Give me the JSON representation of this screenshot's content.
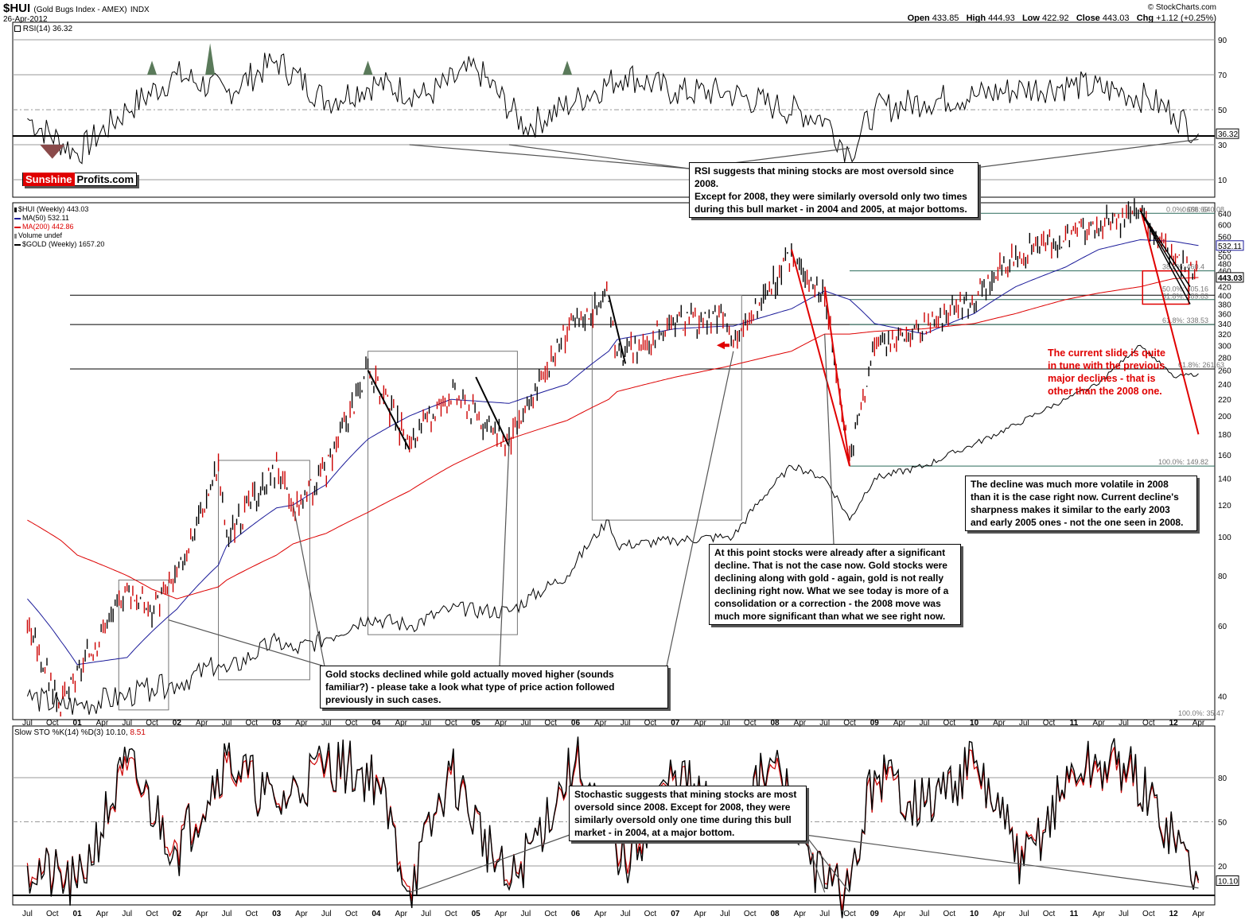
{
  "header": {
    "symbol": "$HUI",
    "name": "(Gold Bugs Index - AMEX)",
    "exchange": "INDX",
    "date": "26-Apr-2012",
    "copyright": "© StockCharts.com",
    "open_label": "Open",
    "open": "433.85",
    "high_label": "High",
    "high": "444.93",
    "low_label": "Low",
    "low": "422.92",
    "close_label": "Close",
    "close": "443.03",
    "chg_label": "Chg",
    "chg": "+1.12 (+0.25%)"
  },
  "logo": {
    "part1": "Sunshine",
    "part2": "Profits.com"
  },
  "colors": {
    "price_up": "#000000",
    "price_down": "#cc0000",
    "ma50": "#1a1a99",
    "ma200": "#dd0000",
    "gold": "#000000",
    "rsi_fill_high": "#5a7a5a",
    "rsi_fill_low": "#8a4a4a",
    "annotation": "#e00000",
    "fib": "#2a6a5a"
  },
  "rsi_panel": {
    "label": "RSI(14) 36.32",
    "current": "36.32",
    "ticks": [
      "90",
      "70",
      "50",
      "30",
      "10"
    ]
  },
  "price_panel": {
    "legend": [
      {
        "text": "$HUI (Weekly) 443.03",
        "icon": "candle-icon"
      },
      {
        "text": "MA(50) 532.11",
        "icon": "blue-line-icon"
      },
      {
        "text": "MA(200) 442.86",
        "icon": "red-line-icon"
      },
      {
        "text": "Volume undef",
        "icon": "volume-icon"
      },
      {
        "text": "$GOLD (Weekly) 1657.20",
        "icon": "black-line-icon"
      }
    ],
    "right_ticks": [
      "640",
      "600",
      "560",
      "520",
      "500",
      "480",
      "460",
      "440",
      "420",
      "400",
      "380",
      "360",
      "340",
      "320",
      "300",
      "280",
      "260",
      "240",
      "220",
      "200",
      "180",
      "160",
      "140",
      "120",
      "100",
      "80",
      "60",
      "40"
    ],
    "badges": {
      "ma50": "532.11",
      "price": "443.03"
    },
    "fib_labels": [
      "0.0%: 668.69",
      "0.0%: 640.08",
      "38.2%: 460.4",
      "50.0%: 405.16",
      "61.8%: 389.83",
      "61.8%: 338.53",
      "100.0%: 149.82",
      "61.8%: 261.63",
      "100.0%: 35.47"
    ],
    "arrow_icon": "red-arrow-icon"
  },
  "sto_panel": {
    "label_prefix": "Slow STO %K(14) %D(3) 10.10,",
    "label_d": "8.51",
    "current": "10.10",
    "ticks": [
      "80",
      "50",
      "20"
    ]
  },
  "x_axis": {
    "labels": [
      "Jul",
      "Oct",
      "01",
      "Apr",
      "Jul",
      "Oct",
      "02",
      "Apr",
      "Jul",
      "Oct",
      "03",
      "Apr",
      "Jul",
      "Oct",
      "04",
      "Apr",
      "Jul",
      "Oct",
      "05",
      "Apr",
      "Jul",
      "Oct",
      "06",
      "Apr",
      "Jul",
      "Oct",
      "07",
      "Apr",
      "Jul",
      "Oct",
      "08",
      "Apr",
      "Jul",
      "Oct",
      "09",
      "Apr",
      "Jul",
      "Oct",
      "10",
      "Apr",
      "Jul",
      "Oct",
      "11",
      "Apr",
      "Jul",
      "Oct",
      "12",
      "Apr"
    ]
  },
  "annotations": {
    "rsi_note": "RSI suggests that mining stocks are most oversold since 2008.\nExcept for 2008, they were similarly oversold only two times\nduring this bull market - in 2004 and 2005, at major bottoms.",
    "current_slide": "The current slide is quite\nin tune with the previous\nmajor declines - that is\nother than the 2008 one.",
    "decline_2008": "The decline was much more volatile in 2008\nthan it is the case right now. Current decline's\nsharpness makes it similar to the early 2003\nand early 2005 ones - not the one seen in 2008.",
    "stocks_after": "At this point stocks were already after a significant\ndecline. That is not the case now. Gold stocks were\ndeclining along with gold - again, gold is not really\ndeclining right now. What we see today is more of a\nconsolidation or a correction - the 2008 move was\nmuch more significant than what we see right now.",
    "gold_moved_higher": "Gold stocks declined while gold actually moved higher (sounds\nfamiliar?) - please take a look what type of price action followed\npreviously in such cases.",
    "stochastic_note": "Stochastic suggests that mining stocks are most\noversold since 2008. Except for 2008, they were\nsimilarly oversold only one time during this bull\nmarket - in 2004, at a major bottom."
  },
  "chart_data": [
    {
      "type": "line",
      "title": "RSI(14)",
      "ylim": [
        0,
        100
      ],
      "x": [
        "2000-07",
        "2001-01",
        "2001-07",
        "2002-01",
        "2002-07",
        "2003-01",
        "2003-07",
        "2004-01",
        "2004-07",
        "2005-01",
        "2005-07",
        "2006-01",
        "2006-07",
        "2007-01",
        "2007-07",
        "2008-01",
        "2008-07",
        "2008-10",
        "2009-01",
        "2009-07",
        "2010-01",
        "2010-07",
        "2011-01",
        "2011-07",
        "2011-10",
        "2012-01",
        "2012-04"
      ],
      "series": [
        {
          "values": [
            45,
            25,
            50,
            70,
            60,
            78,
            55,
            65,
            58,
            74,
            40,
            55,
            70,
            60,
            60,
            52,
            45,
            25,
            50,
            55,
            58,
            62,
            64,
            60,
            56,
            48,
            36.32
          ]
        }
      ]
    },
    {
      "type": "line",
      "title": "$HUI (Weekly)",
      "ylim": [
        35,
        680
      ],
      "yscale": "log",
      "x": [
        "2000-07",
        "2000-11",
        "2001-01",
        "2001-07",
        "2001-10",
        "2002-01",
        "2002-06",
        "2002-07",
        "2003-01",
        "2003-03",
        "2003-07",
        "2003-12",
        "2004-05",
        "2004-10",
        "2005-05",
        "2005-12",
        "2006-05",
        "2006-06",
        "2007-01",
        "2007-07",
        "2007-08",
        "2008-03",
        "2008-07",
        "2008-10",
        "2009-01",
        "2009-07",
        "2010-01",
        "2010-06",
        "2010-12",
        "2011-04",
        "2011-09",
        "2012-01",
        "2012-04"
      ],
      "series": [
        {
          "name": "$HUI (Weekly)",
          "values": [
            60,
            38,
            45,
            75,
            65,
            80,
            150,
            100,
            150,
            115,
            150,
            260,
            170,
            230,
            170,
            330,
            400,
            280,
            340,
            350,
            300,
            500,
            400,
            160,
            300,
            330,
            400,
            500,
            560,
            600,
            640,
            500,
            443.03
          ]
        },
        {
          "name": "MA(50)",
          "values": [
            70,
            55,
            48,
            50,
            58,
            66,
            85,
            95,
            118,
            120,
            135,
            175,
            200,
            220,
            215,
            240,
            290,
            310,
            330,
            335,
            335,
            370,
            410,
            390,
            340,
            320,
            360,
            420,
            470,
            520,
            550,
            545,
            532.11
          ]
        },
        {
          "name": "MA(200)",
          "values": [
            110,
            98,
            90,
            80,
            74,
            70,
            75,
            78,
            90,
            96,
            102,
            115,
            130,
            150,
            175,
            195,
            220,
            230,
            250,
            265,
            268,
            290,
            320,
            320,
            325,
            330,
            340,
            360,
            390,
            405,
            420,
            440,
            442.86
          ]
        },
        {
          "name": "$GOLD (Weekly)",
          "values": [
            40,
            38,
            38,
            40,
            42,
            43,
            48,
            46,
            55,
            52,
            56,
            63,
            60,
            66,
            65,
            80,
            110,
            95,
            98,
            100,
            100,
            150,
            140,
            110,
            140,
            150,
            170,
            190,
            220,
            240,
            300,
            250,
            255
          ]
        }
      ]
    },
    {
      "type": "line",
      "title": "Slow STO %K(14) %D(3)",
      "ylim": [
        0,
        100
      ],
      "x": [
        "2000-07",
        "2001-01",
        "2001-07",
        "2002-01",
        "2002-07",
        "2003-01",
        "2003-07",
        "2004-01",
        "2004-05",
        "2004-10",
        "2005-05",
        "2006-01",
        "2006-07",
        "2007-01",
        "2007-07",
        "2008-01",
        "2008-07",
        "2008-10",
        "2009-01",
        "2009-07",
        "2010-01",
        "2010-07",
        "2011-01",
        "2011-07",
        "2012-01",
        "2012-04"
      ],
      "series": [
        {
          "name": "%K",
          "values": [
            20,
            5,
            90,
            30,
            95,
            60,
            92,
            80,
            3,
            85,
            4,
            92,
            20,
            85,
            45,
            90,
            5,
            3,
            85,
            60,
            90,
            20,
            85,
            90,
            40,
            10.1
          ]
        },
        {
          "name": "%D",
          "values": [
            22,
            8,
            85,
            35,
            90,
            62,
            88,
            82,
            6,
            82,
            7,
            88,
            25,
            82,
            48,
            86,
            8,
            6,
            80,
            62,
            86,
            24,
            82,
            86,
            42,
            8.51
          ]
        }
      ]
    }
  ]
}
